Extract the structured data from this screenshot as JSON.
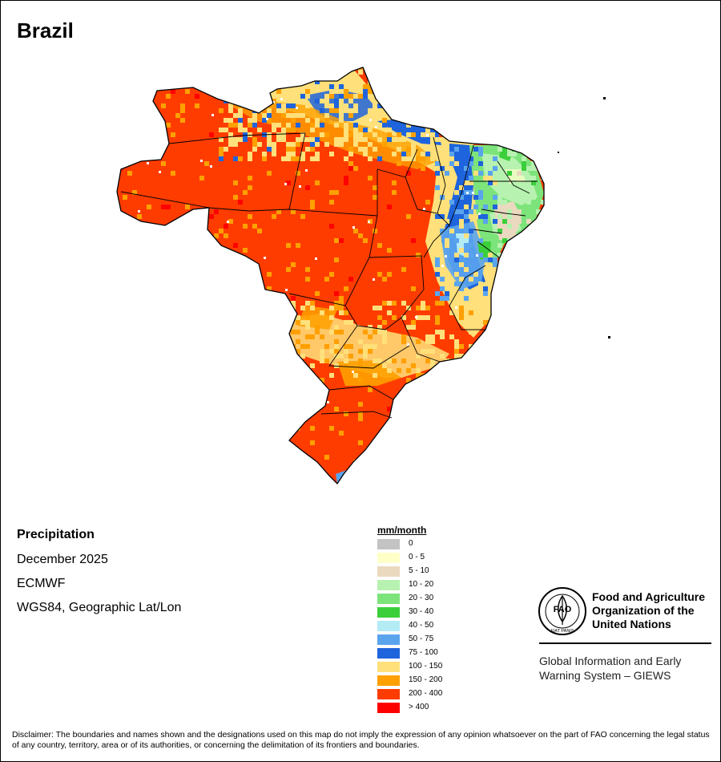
{
  "title": "Brazil",
  "map_info": {
    "variable": "Precipitation",
    "period": "December 2025",
    "model": "ECMWF",
    "projection": "WGS84, Geographic Lat/Lon"
  },
  "legend": {
    "title": "mm/month",
    "items": [
      {
        "label": "0",
        "color": "#c3c3c3"
      },
      {
        "label": "0 - 5",
        "color": "#ffffc8"
      },
      {
        "label": "5 - 10",
        "color": "#ead9bf"
      },
      {
        "label": "10 - 20",
        "color": "#b7f2b0"
      },
      {
        "label": "20 - 30",
        "color": "#7ce47a"
      },
      {
        "label": "30 - 40",
        "color": "#3ccf3c"
      },
      {
        "label": "40 - 50",
        "color": "#b4ecf5"
      },
      {
        "label": "50 - 75",
        "color": "#5aa4ee"
      },
      {
        "label": "75 - 100",
        "color": "#1e64dc"
      },
      {
        "label": "100 - 150",
        "color": "#ffe07a"
      },
      {
        "label": "150 - 200",
        "color": "#ffa000"
      },
      {
        "label": "200 - 400",
        "color": "#ff3c00"
      },
      {
        "label": "> 400",
        "color": "#ff0000"
      }
    ]
  },
  "organization": {
    "logo_text": "FAO",
    "logo_motto": "FIAT PANIS",
    "name_line1": "Food and Agriculture",
    "name_line2": "Organization of the",
    "name_line3": "United Nations",
    "system_line1": "Global Information and Early",
    "system_line2": "Warning System – GIEWS"
  },
  "disclaimer": "Disclaimer: The boundaries and names shown and the designations used on this map do not imply the expression of any opinion whatsoever on the part of FAO concerning the legal status of any country, territory, area or of its authorities, or concerning the delimitation of its frontiers and boundaries."
}
